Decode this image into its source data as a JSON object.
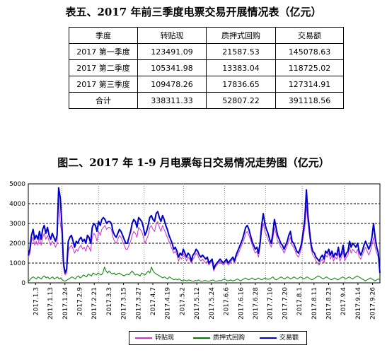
{
  "table_title": "表五、2017 年前三季度电票交易开展情况表（亿元）",
  "table": {
    "headers": [
      "季度",
      "转贴现",
      "质押式回购",
      "交易额"
    ],
    "rows": [
      [
        "2017 第一季度",
        "123491.09",
        "21587.53",
        "145078.63"
      ],
      [
        "2017 第二季度",
        "105341.98",
        "13383.04",
        "118725.02"
      ],
      [
        "2017 第三季度",
        "109478.26",
        "17836.65",
        "127314.91"
      ],
      [
        "合计",
        "338311.33",
        "52807.22",
        "391118.56"
      ]
    ]
  },
  "chart_title": "图二、2017 年 1-9 月电票每日交易情况走势图（亿元）",
  "chart_data": {
    "type": "line",
    "title": "图二、2017 年 1-9 月电票每日交易情况走势图（亿元）",
    "xlabel": "",
    "ylabel": "",
    "ylim": [
      0,
      5000
    ],
    "y_ticks": [
      "0",
      "1000",
      "2000",
      "3000",
      "4000",
      "5000"
    ],
    "x_tick_labels": [
      "2017.1.3",
      "2017.1.13",
      "2017.1.24",
      "2017.2.9",
      "2017.2.21",
      "2017.3.3",
      "2017.3.15",
      "2017.3.27",
      "2017.4.7",
      "2017.4.19",
      "2017.5.2",
      "2017.5.12",
      "2017.5.24",
      "2017.6.6",
      "2017.6.16",
      "2017.6.28",
      "2017.7.10",
      "2017.7.20",
      "2017.8.1",
      "2017.8.11",
      "2017.8.23",
      "2017.9.4",
      "2017.9.14",
      "2017.9.26"
    ],
    "month_separators_after_tick": [
      1.8,
      4.3,
      7.4,
      10.1,
      12.9,
      15.7,
      18.2,
      21.1
    ],
    "grid": "horizontal dashed",
    "legend_position": "bottom",
    "colors": {
      "转贴现": "#cc33cc",
      "质押式回购": "#008000",
      "交易额": "#0000cc",
      "separator": "#ff6060"
    },
    "series": [
      {
        "name": "转贴现",
        "values": [
          1300,
          1500,
          2100,
          2300,
          1900,
          2100,
          1900,
          2300,
          1900,
          2300,
          2500,
          2200,
          2400,
          2100,
          1900,
          2100,
          2000,
          1800,
          2000,
          4300,
          3000,
          2500,
          800,
          400,
          500,
          1600,
          1800,
          1900,
          1700,
          1500,
          1700,
          1600,
          1800,
          1900,
          1700,
          1800,
          1600,
          1900,
          1800,
          1600,
          2300,
          2500,
          2400,
          2100,
          2600,
          2400,
          2700,
          2800,
          2900,
          2700,
          2800,
          2800,
          2700,
          2300,
          2100,
          2000,
          2200,
          2400,
          2300,
          2100,
          1900,
          1700,
          1700,
          1900,
          2100,
          2400,
          2600,
          2500,
          2300,
          2800,
          2700,
          2600,
          2300,
          2000,
          2200,
          2400,
          2800,
          2900,
          2700,
          2600,
          3000,
          3100,
          2800,
          2600,
          2900,
          2700,
          2500,
          2300,
          2100,
          1900,
          1700,
          1500,
          1600,
          1400,
          1100,
          1300,
          1200,
          1500,
          1300,
          1100,
          1300,
          1200,
          1000,
          1200,
          1300,
          1500,
          1400,
          1200,
          1100,
          1200,
          1100,
          1000,
          1100,
          900,
          1000,
          1100,
          600,
          800,
          900,
          1000,
          1100,
          1000,
          900,
          1000,
          1100,
          900,
          1000,
          1100,
          1200,
          1000,
          1300,
          1400,
          1600,
          1800,
          2000,
          2200,
          2500,
          2600,
          2400,
          2200,
          1900,
          1700,
          1500,
          1600,
          1300,
          1800,
          2600,
          3000,
          2600,
          2400,
          2200,
          2000,
          1800,
          2200,
          2800,
          2500,
          2100,
          2000,
          1800,
          1700,
          1500,
          1700,
          1900,
          2100,
          2300,
          1900,
          1800,
          1600,
          1400,
          1300,
          1500,
          1800,
          2300,
          2800,
          3900,
          3000,
          2300,
          1700,
          1400,
          1300,
          1100,
          1000,
          900,
          1100,
          1200,
          1000,
          1400,
          1300,
          1500,
          1200,
          1400,
          1100,
          1300,
          1200,
          1500,
          1100,
          1300,
          1600,
          1100,
          1300,
          1400,
          1800,
          1500,
          1700,
          1600,
          1500,
          1700,
          1300,
          1200,
          1400,
          1600,
          1800,
          1600,
          1400,
          1600,
          1900,
          2300,
          1800,
          1500,
          1300,
          500
        ]
      },
      {
        "name": "质押式回购",
        "values": [
          100,
          150,
          250,
          300,
          250,
          200,
          300,
          250,
          200,
          300,
          350,
          250,
          300,
          200,
          250,
          300,
          200,
          250,
          300,
          200,
          250,
          150,
          100,
          100,
          150,
          200,
          250,
          300,
          250,
          200,
          300,
          350,
          250,
          300,
          400,
          350,
          300,
          450,
          400,
          350,
          500,
          450,
          400,
          500,
          450,
          400,
          500,
          800,
          600,
          500,
          600,
          500,
          450,
          500,
          400,
          450,
          500,
          450,
          400,
          350,
          400,
          450,
          400,
          500,
          600,
          500,
          400,
          450,
          400,
          350,
          500,
          450,
          400,
          500,
          600,
          500,
          800,
          600,
          500,
          450,
          400,
          350,
          300,
          250,
          300,
          250,
          200,
          300,
          250,
          200,
          150,
          200,
          150,
          200,
          150,
          100,
          150,
          120,
          100,
          150,
          120,
          100,
          80,
          120,
          100,
          150,
          100,
          80,
          100,
          120,
          100,
          80,
          100,
          120,
          150,
          100,
          80,
          100,
          120,
          100,
          150,
          200,
          150,
          100,
          120,
          150,
          100,
          120,
          150,
          200,
          150,
          100,
          150,
          200,
          250,
          200,
          150,
          200,
          250,
          200,
          150,
          200,
          250,
          200,
          150,
          200,
          250,
          200,
          180,
          200,
          250,
          300,
          200,
          150,
          200,
          250,
          300,
          250,
          200,
          250,
          300,
          250,
          200,
          250,
          300,
          250,
          200,
          250,
          300,
          250,
          200,
          250,
          300,
          250,
          200,
          150,
          200,
          250,
          300,
          350,
          300,
          250,
          200,
          250,
          300,
          250,
          200,
          150,
          200,
          250,
          200,
          150,
          200,
          250,
          300,
          250,
          200,
          250,
          300,
          250,
          200,
          250,
          300,
          350,
          300,
          250,
          200,
          150,
          100,
          150,
          200,
          250,
          200,
          150,
          100,
          150,
          200,
          150
        ]
      },
      {
        "name": "交易额",
        "values": [
          1400,
          1700,
          2400,
          2700,
          2200,
          2400,
          2200,
          2600,
          2200,
          2700,
          2900,
          2500,
          2800,
          2400,
          2200,
          2500,
          2300,
          2100,
          2400,
          4800,
          4300,
          3000,
          1000,
          500,
          700,
          2100,
          2300,
          2400,
          2100,
          1800,
          2100,
          2000,
          2200,
          2300,
          2100,
          2200,
          2000,
          2400,
          2300,
          2000,
          2800,
          3000,
          2900,
          2600,
          3100,
          2900,
          3200,
          3300,
          3200,
          3000,
          3100,
          3100,
          3000,
          2600,
          2400,
          2300,
          2500,
          2700,
          2600,
          2400,
          2200,
          2000,
          2000,
          2300,
          2600,
          3000,
          3200,
          3100,
          2800,
          3300,
          3200,
          3100,
          2800,
          2400,
          2600,
          2900,
          3300,
          3400,
          3200,
          3100,
          3500,
          3600,
          3300,
          3100,
          3400,
          3200,
          2900,
          2700,
          2400,
          2200,
          2000,
          1700,
          1800,
          1600,
          1300,
          1500,
          1400,
          1700,
          1500,
          1300,
          1500,
          1400,
          1100,
          1400,
          1500,
          1700,
          1600,
          1400,
          1300,
          1400,
          1300,
          1200,
          1300,
          1000,
          1100,
          1200,
          700,
          900,
          1000,
          1100,
          1200,
          1100,
          1000,
          1100,
          1200,
          1000,
          1100,
          1200,
          1300,
          1100,
          1400,
          1600,
          1800,
          2000,
          2200,
          2500,
          2800,
          2900,
          2700,
          2400,
          2100,
          1900,
          1700,
          1800,
          1500,
          2000,
          2900,
          3500,
          3000,
          2700,
          2500,
          2200,
          2000,
          2500,
          3200,
          2800,
          2400,
          2200,
          2000,
          1900,
          1700,
          1900,
          2100,
          2400,
          2600,
          2100,
          2000,
          1800,
          1600,
          1500,
          1700,
          2000,
          2600,
          3200,
          4700,
          3400,
          2600,
          1900,
          1600,
          1500,
          1300,
          1200,
          1100,
          1300,
          1400,
          1200,
          1600,
          1500,
          1700,
          1400,
          1600,
          1300,
          1500,
          1400,
          1800,
          1300,
          1500,
          1900,
          1300,
          1500,
          1600,
          2100,
          1800,
          2000,
          1900,
          1800,
          2000,
          1600,
          1400,
          1600,
          1900,
          2100,
          1900,
          1700,
          1900,
          2300,
          3000,
          2300,
          1800,
          1500,
          500
        ]
      }
    ]
  }
}
